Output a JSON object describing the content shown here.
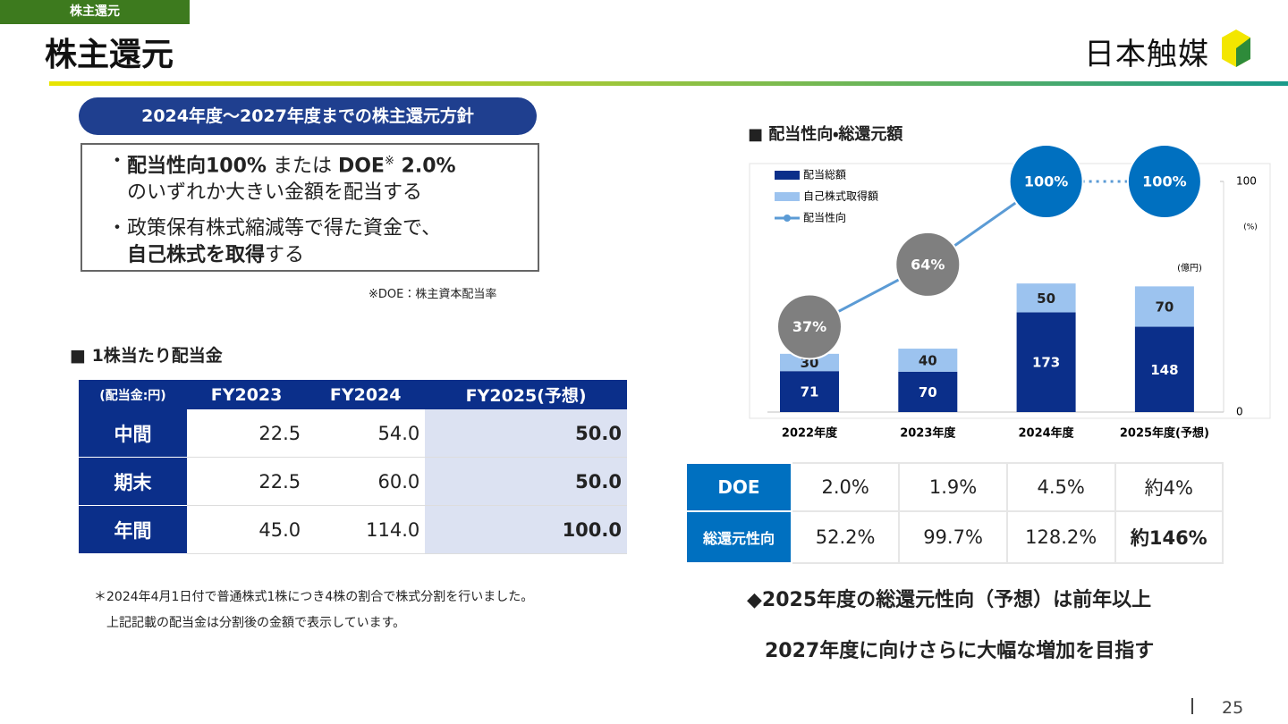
{
  "header": {
    "tab": "株主還元",
    "title": "株主還元",
    "logo": "日本触媒"
  },
  "policy": {
    "title": "2024年度～2027年度までの株主還元方針",
    "items": [
      [
        "配当性向100%",
        " または ",
        "DOE",
        "※",
        " 2.0%",
        "のいずれか大きい金額を配当する"
      ],
      [
        "政策保有株式縮減等で得た資金で、",
        "自己株式を取得",
        "する"
      ]
    ],
    "note": "※DOE：株主資本配当率"
  },
  "dividend": {
    "title": "■ 1株当たり配当金",
    "columns": [
      "(配当金:円)",
      "FY2023",
      "FY2024",
      "FY2025(予想)"
    ],
    "rows": [
      [
        "中間",
        "22.5",
        "54.0",
        "50.0"
      ],
      [
        "期末",
        "22.5",
        "60.0",
        "50.0"
      ],
      [
        "年間",
        "45.0",
        "114.0",
        "100.0"
      ]
    ],
    "notes": [
      "＊2024年4月1日付で普通株式1株につき4株の割合で株式分割を行いました。",
      "上記記載の配当金は分割後の金額で表示しています。"
    ]
  },
  "chart_data": {
    "type": "bar",
    "title": "■ 配当性向・総還元額",
    "categories": [
      "2022年度",
      "2023年度",
      "2024年度",
      "2025年度(予想)"
    ],
    "series": [
      {
        "name": "配当総額",
        "color": "#0b2f8a",
        "values": [
          71,
          70,
          173,
          148
        ]
      },
      {
        "name": "自己株式取得額",
        "color": "#9cc3ef",
        "values": [
          30,
          40,
          50,
          70
        ]
      },
      {
        "name": "配当性向",
        "type": "line",
        "axis": "y2",
        "color": "#5b9bd5",
        "values": [
          37,
          64,
          100,
          100
        ],
        "value_labels": [
          "37%",
          "64%",
          "100%",
          "100%"
        ],
        "marker_colors": [
          "#7f7f7f",
          "#7f7f7f",
          "#0070c0",
          "#0070c0"
        ],
        "last_segment_dotted": true
      }
    ],
    "y_label": "(億円)",
    "y2_label": "(%)",
    "ylim": [
      0,
      400
    ],
    "y2lim": [
      0,
      100
    ],
    "y2ticks": [
      0,
      100
    ]
  },
  "ratio_table": {
    "rows": [
      [
        "DOE",
        "2.0%",
        "1.9%",
        "4.5%",
        "約4%"
      ],
      [
        "総還元性向",
        "52.2%",
        "99.7%",
        "128.2%",
        "約146%"
      ]
    ]
  },
  "conclusion": [
    "◆2025年度の総還元性向（予想）は前年以上",
    "2027年度に向けさらに大幅な増加を目指す"
  ],
  "page_number": "25"
}
